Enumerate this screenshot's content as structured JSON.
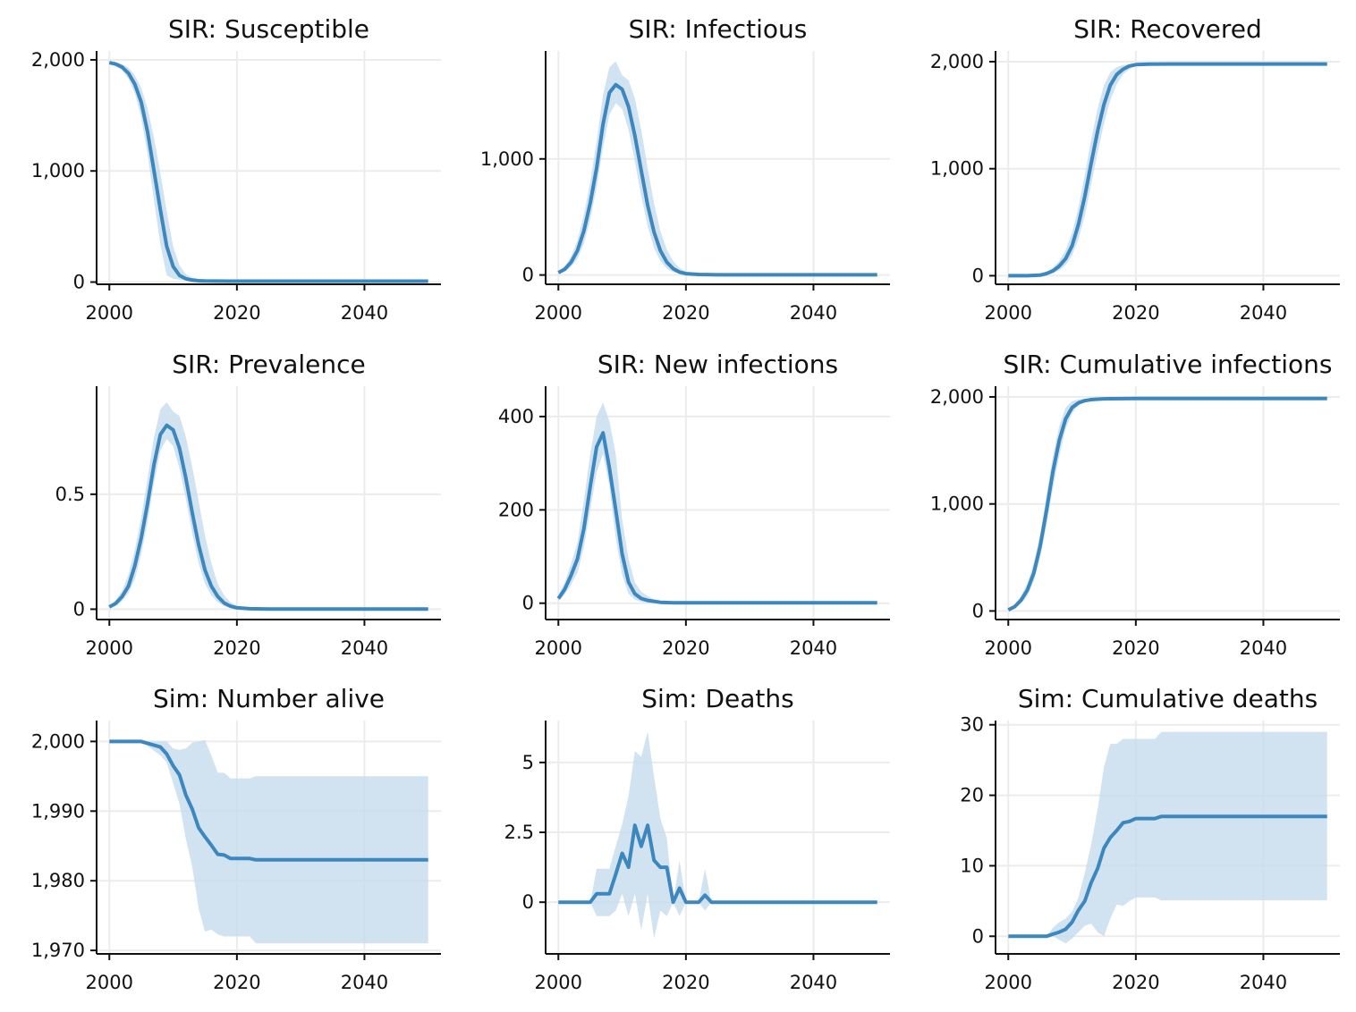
{
  "colors": {
    "line": "#3d87bf",
    "band": "#c6dcec",
    "grid": "#ececec",
    "axis": "#111111"
  },
  "chart_data": [
    {
      "type": "line",
      "title": "SIR: Susceptible",
      "x": [
        2000,
        2001,
        2002,
        2003,
        2004,
        2005,
        2006,
        2007,
        2008,
        2009,
        2010,
        2011,
        2012,
        2013,
        2014,
        2015,
        2020,
        2030,
        2040,
        2050
      ],
      "series": [
        {
          "values": [
            1975,
            1962,
            1935,
            1880,
            1780,
            1620,
            1350,
            1000,
            650,
            320,
            140,
            60,
            30,
            18,
            12,
            10,
            8,
            8,
            8,
            8
          ]
        }
      ],
      "band_low": [
        1960,
        1945,
        1905,
        1830,
        1700,
        1480,
        1150,
        730,
        340,
        60,
        30,
        20,
        15,
        10,
        8,
        8,
        8,
        8,
        8,
        8
      ],
      "band_high": [
        1990,
        1980,
        1960,
        1930,
        1860,
        1750,
        1560,
        1300,
        980,
        640,
        320,
        150,
        70,
        40,
        25,
        18,
        10,
        8,
        8,
        8
      ],
      "xlim": [
        1998,
        2052
      ],
      "ylim": [
        -20,
        2080
      ],
      "xticks": [
        2000,
        2020,
        2040
      ],
      "xtick_labels": [
        "2000",
        "2020",
        "2040"
      ],
      "yticks": [
        0,
        1000,
        2000
      ],
      "ytick_labels": [
        "0",
        "1,000",
        "2,000"
      ]
    },
    {
      "type": "line",
      "title": "SIR: Infectious",
      "x": [
        2000,
        2001,
        2002,
        2003,
        2004,
        2005,
        2006,
        2007,
        2008,
        2009,
        2010,
        2011,
        2012,
        2013,
        2014,
        2015,
        2016,
        2017,
        2018,
        2019,
        2020,
        2022,
        2025,
        2030,
        2040,
        2050
      ],
      "series": [
        {
          "values": [
            20,
            50,
            110,
            210,
            380,
            620,
            920,
            1300,
            1570,
            1640,
            1600,
            1450,
            1200,
            900,
            600,
            370,
            210,
            110,
            55,
            25,
            12,
            5,
            2,
            2,
            2,
            2
          ]
        }
      ],
      "band_low": [
        10,
        30,
        70,
        140,
        270,
        480,
        750,
        1100,
        1380,
        1480,
        1430,
        1250,
        980,
        680,
        420,
        230,
        120,
        55,
        25,
        10,
        5,
        2,
        2,
        2,
        2,
        2
      ],
      "band_high": [
        30,
        75,
        160,
        300,
        520,
        800,
        1150,
        1550,
        1790,
        1840,
        1720,
        1680,
        1520,
        1250,
        920,
        620,
        380,
        220,
        120,
        60,
        30,
        12,
        4,
        2,
        2,
        2
      ],
      "xlim": [
        1998,
        2052
      ],
      "ylim": [
        -80,
        1930
      ],
      "xticks": [
        2000,
        2020,
        2040
      ],
      "xtick_labels": [
        "2000",
        "2020",
        "2040"
      ],
      "yticks": [
        0,
        1000
      ],
      "ytick_labels": [
        "0",
        "1,000"
      ]
    },
    {
      "type": "line",
      "title": "SIR: Recovered",
      "x": [
        2000,
        2003,
        2005,
        2006,
        2007,
        2008,
        2009,
        2010,
        2011,
        2012,
        2013,
        2014,
        2015,
        2016,
        2017,
        2018,
        2019,
        2020,
        2022,
        2025,
        2030,
        2040,
        2050
      ],
      "series": [
        {
          "values": [
            0,
            0,
            5,
            20,
            45,
            90,
            160,
            280,
            480,
            740,
            1050,
            1350,
            1600,
            1780,
            1880,
            1930,
            1960,
            1972,
            1977,
            1978,
            1978,
            1978,
            1978
          ]
        }
      ],
      "band_low": [
        0,
        0,
        2,
        10,
        25,
        50,
        100,
        190,
        340,
        560,
        850,
        1150,
        1420,
        1640,
        1790,
        1880,
        1930,
        1958,
        1975,
        1978,
        1978,
        1978,
        1978
      ],
      "band_high": [
        0,
        2,
        10,
        35,
        75,
        140,
        240,
        400,
        640,
        940,
        1270,
        1560,
        1780,
        1900,
        1950,
        1968,
        1975,
        1978,
        1978,
        1978,
        1978,
        1978,
        1978
      ],
      "xlim": [
        1998,
        2052
      ],
      "ylim": [
        -80,
        2100
      ],
      "xticks": [
        2000,
        2020,
        2040
      ],
      "xtick_labels": [
        "2000",
        "2020",
        "2040"
      ],
      "yticks": [
        0,
        1000,
        2000
      ],
      "ytick_labels": [
        "0",
        "1,000",
        "2,000"
      ]
    },
    {
      "type": "line",
      "title": "SIR: Prevalence",
      "x": [
        2000,
        2001,
        2002,
        2003,
        2004,
        2005,
        2006,
        2007,
        2008,
        2009,
        2010,
        2011,
        2012,
        2013,
        2014,
        2015,
        2016,
        2017,
        2018,
        2019,
        2020,
        2022,
        2025,
        2030,
        2040,
        2050
      ],
      "series": [
        {
          "values": [
            0.01,
            0.025,
            0.055,
            0.1,
            0.19,
            0.31,
            0.46,
            0.63,
            0.76,
            0.8,
            0.78,
            0.7,
            0.57,
            0.42,
            0.28,
            0.17,
            0.1,
            0.055,
            0.027,
            0.013,
            0.006,
            0.002,
            0.001,
            0.001,
            0.001,
            0.001
          ]
        }
      ],
      "band_low": [
        0.005,
        0.015,
        0.035,
        0.07,
        0.13,
        0.24,
        0.38,
        0.55,
        0.69,
        0.74,
        0.71,
        0.61,
        0.48,
        0.33,
        0.2,
        0.11,
        0.06,
        0.03,
        0.012,
        0.005,
        0.002,
        0.001,
        0.001,
        0.001,
        0.001,
        0.001
      ],
      "band_high": [
        0.015,
        0.04,
        0.08,
        0.15,
        0.26,
        0.4,
        0.57,
        0.75,
        0.87,
        0.9,
        0.86,
        0.84,
        0.75,
        0.62,
        0.47,
        0.32,
        0.2,
        0.11,
        0.06,
        0.03,
        0.015,
        0.006,
        0.002,
        0.001,
        0.001,
        0.001
      ],
      "xlim": [
        1998,
        2052
      ],
      "ylim": [
        -0.045,
        0.97
      ],
      "xticks": [
        2000,
        2020,
        2040
      ],
      "xtick_labels": [
        "2000",
        "2020",
        "2040"
      ],
      "yticks": [
        0,
        0.5
      ],
      "ytick_labels": [
        "0",
        "0.5"
      ]
    },
    {
      "type": "line",
      "title": "SIR: New infections",
      "x": [
        2000,
        2001,
        2002,
        2003,
        2004,
        2005,
        2006,
        2007,
        2008,
        2009,
        2010,
        2011,
        2012,
        2013,
        2014,
        2015,
        2016,
        2018,
        2020,
        2030,
        2040,
        2050
      ],
      "series": [
        {
          "values": [
            10,
            30,
            60,
            95,
            160,
            250,
            335,
            365,
            290,
            200,
            105,
            45,
            20,
            10,
            6,
            4,
            2,
            1,
            1,
            1,
            1,
            1
          ]
        }
      ],
      "band_low": [
        5,
        18,
        40,
        65,
        120,
        200,
        280,
        320,
        250,
        140,
        60,
        20,
        8,
        3,
        1,
        1,
        0,
        0,
        0,
        0,
        0,
        0
      ],
      "band_high": [
        18,
        45,
        85,
        130,
        220,
        320,
        400,
        430,
        390,
        320,
        180,
        95,
        45,
        25,
        15,
        8,
        5,
        2,
        1,
        1,
        1,
        1
      ],
      "xlim": [
        1998,
        2052
      ],
      "ylim": [
        -35,
        465
      ],
      "xticks": [
        2000,
        2020,
        2040
      ],
      "xtick_labels": [
        "2000",
        "2020",
        "2040"
      ],
      "yticks": [
        0,
        200,
        400
      ],
      "ytick_labels": [
        "0",
        "200",
        "400"
      ]
    },
    {
      "type": "line",
      "title": "SIR: Cumulative infections",
      "x": [
        2000,
        2001,
        2002,
        2003,
        2004,
        2005,
        2006,
        2007,
        2008,
        2009,
        2010,
        2011,
        2012,
        2013,
        2014,
        2015,
        2016,
        2020,
        2030,
        2040,
        2050
      ],
      "series": [
        {
          "values": [
            10,
            40,
            100,
            195,
            355,
            605,
            940,
            1305,
            1595,
            1795,
            1900,
            1945,
            1965,
            1975,
            1979,
            1982,
            1983,
            1985,
            1985,
            1985,
            1985
          ]
        }
      ],
      "band_low": [
        5,
        25,
        70,
        140,
        280,
        500,
        800,
        1150,
        1450,
        1700,
        1850,
        1920,
        1955,
        1970,
        1978,
        1982,
        1983,
        1985,
        1985,
        1985,
        1985
      ],
      "band_high": [
        18,
        60,
        140,
        260,
        450,
        720,
        1080,
        1450,
        1730,
        1900,
        1960,
        1978,
        1983,
        1985,
        1985,
        1985,
        1985,
        1985,
        1985,
        1985,
        1985
      ],
      "xlim": [
        1998,
        2052
      ],
      "ylim": [
        -80,
        2100
      ],
      "xticks": [
        2000,
        2020,
        2040
      ],
      "xtick_labels": [
        "2000",
        "2020",
        "2040"
      ],
      "yticks": [
        0,
        1000,
        2000
      ],
      "ytick_labels": [
        "0",
        "1,000",
        "2,000"
      ]
    },
    {
      "type": "line",
      "title": "Sim: Number alive",
      "x": [
        2000,
        2005,
        2008,
        2009,
        2010,
        2011,
        2012,
        2013,
        2014,
        2015,
        2016,
        2017,
        2018,
        2019,
        2020,
        2022,
        2023,
        2030,
        2040,
        2050
      ],
      "series": [
        {
          "values": [
            2000,
            2000,
            1999.2,
            1998.2,
            1996.5,
            1995.2,
            1992.3,
            1990.3,
            1987.6,
            1986.3,
            1985.1,
            1983.8,
            1983.7,
            1983.2,
            1983.2,
            1983.2,
            1983,
            1983,
            1983,
            1983
          ]
        }
      ],
      "band_low": [
        2000,
        2000,
        1998,
        1997,
        1994,
        1991,
        1986,
        1982,
        1976,
        1972.7,
        1973,
        1972.3,
        1972,
        1972,
        1972,
        1972,
        1971,
        1971,
        1971,
        1971
      ],
      "band_high": [
        2000,
        2000,
        2000,
        2000,
        1999,
        1998.8,
        1999,
        1999.8,
        2000,
        2000.2,
        1998,
        1995.5,
        1995.5,
        1994.7,
        1994.7,
        1994.7,
        1995,
        1995,
        1995,
        1995
      ],
      "xlim": [
        1998,
        2052
      ],
      "ylim": [
        1969.5,
        2003
      ],
      "xticks": [
        2000,
        2020,
        2040
      ],
      "xtick_labels": [
        "2000",
        "2020",
        "2040"
      ],
      "yticks": [
        1970,
        1980,
        1990,
        2000
      ],
      "ytick_labels": [
        "1,970",
        "1,980",
        "1,990",
        "2,000"
      ]
    },
    {
      "type": "line",
      "title": "Sim: Deaths",
      "x": [
        2000,
        2005,
        2006,
        2007,
        2008,
        2009,
        2010,
        2011,
        2012,
        2013,
        2014,
        2015,
        2016,
        2017,
        2018,
        2019,
        2020,
        2021,
        2022,
        2023,
        2024,
        2030,
        2040,
        2050
      ],
      "series": [
        {
          "values": [
            0,
            0,
            0.3,
            0.3,
            0.3,
            1,
            1.75,
            1.25,
            2.75,
            2,
            2.75,
            1.5,
            1.25,
            1.25,
            0,
            0.5,
            0,
            0,
            0,
            0.25,
            0,
            0,
            0,
            0
          ]
        }
      ],
      "band_low": [
        0,
        0,
        -0.5,
        -0.5,
        -0.5,
        -0.3,
        0.3,
        -0.5,
        0.3,
        -1,
        0.3,
        -1.3,
        -0.3,
        -0.5,
        0,
        -0.5,
        0,
        0,
        0,
        -0.3,
        0,
        0,
        0,
        0
      ],
      "band_high": [
        0,
        0,
        1.2,
        1.2,
        1.2,
        2,
        2.8,
        3.8,
        5.4,
        5.2,
        6.1,
        4.5,
        3,
        2.3,
        0,
        1.5,
        0,
        0,
        0,
        1.2,
        0,
        0,
        0,
        0
      ],
      "xlim": [
        1998,
        2052
      ],
      "ylim": [
        -1.85,
        6.5
      ],
      "xticks": [
        2000,
        2020,
        2040
      ],
      "xtick_labels": [
        "2000",
        "2020",
        "2040"
      ],
      "yticks": [
        0,
        2.5,
        5
      ],
      "ytick_labels": [
        "0",
        "2.5",
        "5"
      ]
    },
    {
      "type": "line",
      "title": "Sim: Cumulative deaths",
      "x": [
        2000,
        2006,
        2007,
        2008,
        2009,
        2010,
        2011,
        2012,
        2013,
        2014,
        2015,
        2016,
        2017,
        2018,
        2019,
        2020,
        2021,
        2022,
        2023,
        2024,
        2030,
        2040,
        2050
      ],
      "series": [
        {
          "values": [
            0,
            0,
            0.3,
            0.6,
            1,
            2,
            3.7,
            5,
            7.6,
            9.6,
            12.5,
            14,
            15,
            16.1,
            16.3,
            16.7,
            16.7,
            16.7,
            16.7,
            17,
            17,
            17,
            17
          ]
        }
      ],
      "band_low": [
        0,
        0,
        0,
        -0.5,
        -1,
        -0.3,
        0.6,
        1.5,
        1.8,
        0.6,
        0,
        2.5,
        4.5,
        4.3,
        5,
        5.5,
        5.5,
        5.5,
        5.5,
        5.1,
        5.1,
        5.1,
        5.1
      ],
      "band_high": [
        0,
        0,
        1.2,
        2,
        2.5,
        3.5,
        5.5,
        9,
        13,
        18,
        24,
        27.3,
        27.3,
        28,
        28,
        28,
        28,
        28,
        28,
        29,
        29,
        29,
        29
      ],
      "xlim": [
        1998,
        2052
      ],
      "ylim": [
        -2.5,
        30.6
      ],
      "xticks": [
        2000,
        2020,
        2040
      ],
      "xtick_labels": [
        "2000",
        "2020",
        "2040"
      ],
      "yticks": [
        0,
        10,
        20,
        30
      ],
      "ytick_labels": [
        "0",
        "10",
        "20",
        "30"
      ]
    }
  ]
}
